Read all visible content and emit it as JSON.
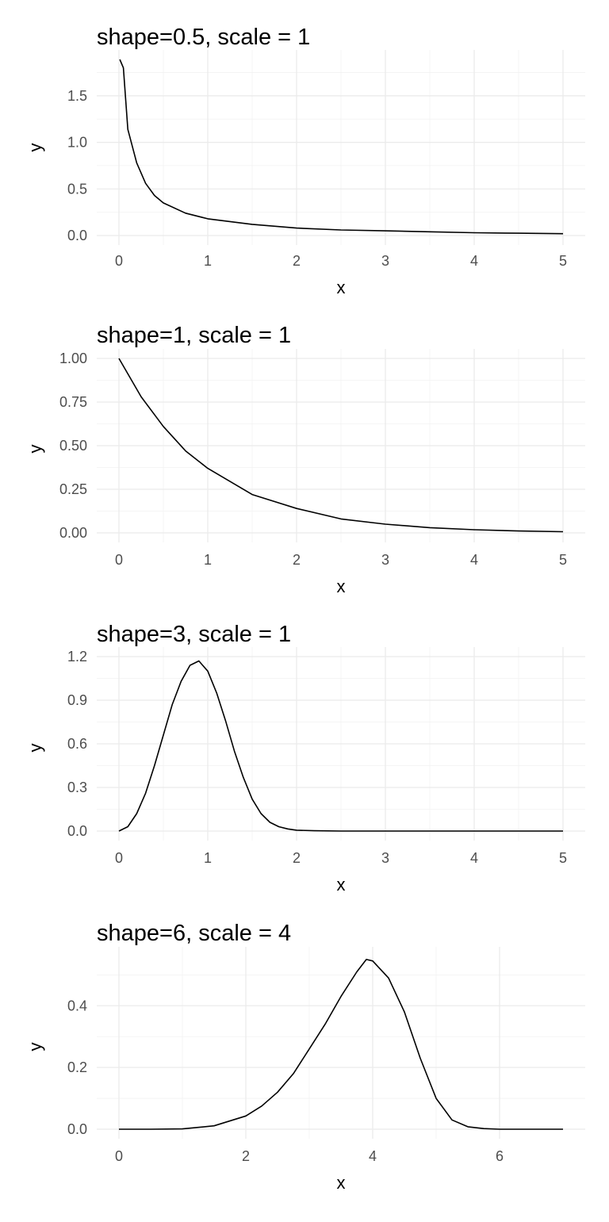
{
  "chart_data": [
    {
      "type": "line",
      "title": "shape=0.5, scale = 1",
      "xlabel": "x",
      "ylabel": "y",
      "shape": 0.5,
      "scale": 1,
      "xlim": [
        0,
        5
      ],
      "ylim": [
        0,
        1.89
      ],
      "xticks": [
        0,
        1,
        2,
        3,
        4,
        5
      ],
      "xtick_labels": [
        "0",
        "1",
        "2",
        "3",
        "4",
        "5"
      ],
      "yticks": [
        0,
        0.5,
        1,
        1.5
      ],
      "ytick_labels": [
        "0.0",
        "0.5",
        "1.0",
        "1.5"
      ],
      "grid": true,
      "series": [
        {
          "x": [
            0.01,
            0.05,
            0.1,
            0.2,
            0.3,
            0.4,
            0.5,
            0.75,
            1,
            1.5,
            2,
            2.5,
            3,
            3.5,
            4,
            4.5,
            5
          ],
          "y": [
            1.89,
            1.8,
            1.14,
            0.78,
            0.56,
            0.43,
            0.35,
            0.24,
            0.18,
            0.12,
            0.08,
            0.06,
            0.05,
            0.04,
            0.03,
            0.025,
            0.02
          ]
        }
      ]
    },
    {
      "type": "line",
      "title": "shape=1, scale = 1",
      "xlabel": "x",
      "ylabel": "y",
      "shape": 1,
      "scale": 1,
      "xlim": [
        0,
        5
      ],
      "ylim": [
        0,
        1
      ],
      "xticks": [
        0,
        1,
        2,
        3,
        4,
        5
      ],
      "xtick_labels": [
        "0",
        "1",
        "2",
        "3",
        "4",
        "5"
      ],
      "yticks": [
        0,
        0.25,
        0.5,
        0.75,
        1
      ],
      "ytick_labels": [
        "0.00",
        "0.25",
        "0.50",
        "0.75",
        "1.00"
      ],
      "grid": true,
      "series": [
        {
          "x": [
            0,
            0.25,
            0.5,
            0.75,
            1,
            1.5,
            2,
            2.5,
            3,
            3.5,
            4,
            4.5,
            5
          ],
          "y": [
            1.0,
            0.78,
            0.61,
            0.47,
            0.37,
            0.22,
            0.14,
            0.08,
            0.05,
            0.03,
            0.018,
            0.011,
            0.007
          ]
        }
      ]
    },
    {
      "type": "line",
      "title": "shape=3, scale = 1",
      "xlabel": "x",
      "ylabel": "y",
      "shape": 3,
      "scale": 1,
      "xlim": [
        0,
        5
      ],
      "ylim": [
        0,
        1.2
      ],
      "xticks": [
        0,
        1,
        2,
        3,
        4,
        5
      ],
      "xtick_labels": [
        "0",
        "1",
        "2",
        "3",
        "4",
        "5"
      ],
      "yticks": [
        0,
        0.3,
        0.6,
        0.9,
        1.2
      ],
      "ytick_labels": [
        "0.0",
        "0.3",
        "0.6",
        "0.9",
        "1.2"
      ],
      "grid": true,
      "series": [
        {
          "x": [
            0,
            0.1,
            0.2,
            0.3,
            0.4,
            0.5,
            0.6,
            0.7,
            0.8,
            0.9,
            1.0,
            1.1,
            1.2,
            1.3,
            1.4,
            1.5,
            1.6,
            1.7,
            1.8,
            1.9,
            2.0,
            2.2,
            2.5,
            3,
            4,
            5
          ],
          "y": [
            0,
            0.03,
            0.12,
            0.26,
            0.45,
            0.66,
            0.87,
            1.03,
            1.14,
            1.17,
            1.1,
            0.95,
            0.76,
            0.55,
            0.37,
            0.22,
            0.12,
            0.06,
            0.03,
            0.015,
            0.006,
            0.002,
            0.0,
            0.0,
            0.0,
            0.0
          ]
        }
      ]
    },
    {
      "type": "line",
      "title": "shape=6, scale = 4",
      "xlabel": "x",
      "ylabel": "y",
      "shape": 6,
      "scale": 4,
      "xlim": [
        0,
        7
      ],
      "ylim": [
        0,
        0.56
      ],
      "xticks": [
        0,
        2,
        4,
        6
      ],
      "xtick_labels": [
        "0",
        "2",
        "4",
        "6"
      ],
      "yticks": [
        0,
        0.2,
        0.4
      ],
      "ytick_labels": [
        "0.0",
        "0.2",
        "0.4"
      ],
      "grid": true,
      "series": [
        {
          "x": [
            0,
            0.5,
            1.0,
            1.5,
            2.0,
            2.25,
            2.5,
            2.75,
            3.0,
            3.25,
            3.5,
            3.75,
            3.9,
            4.0,
            4.25,
            4.5,
            4.75,
            5.0,
            5.25,
            5.5,
            5.75,
            6.0,
            6.5,
            7.0
          ],
          "y": [
            0,
            0.0,
            0.001,
            0.011,
            0.043,
            0.075,
            0.12,
            0.18,
            0.26,
            0.34,
            0.43,
            0.51,
            0.55,
            0.545,
            0.49,
            0.38,
            0.23,
            0.1,
            0.03,
            0.008,
            0.002,
            0.0,
            0.0,
            0.0
          ]
        }
      ]
    }
  ]
}
